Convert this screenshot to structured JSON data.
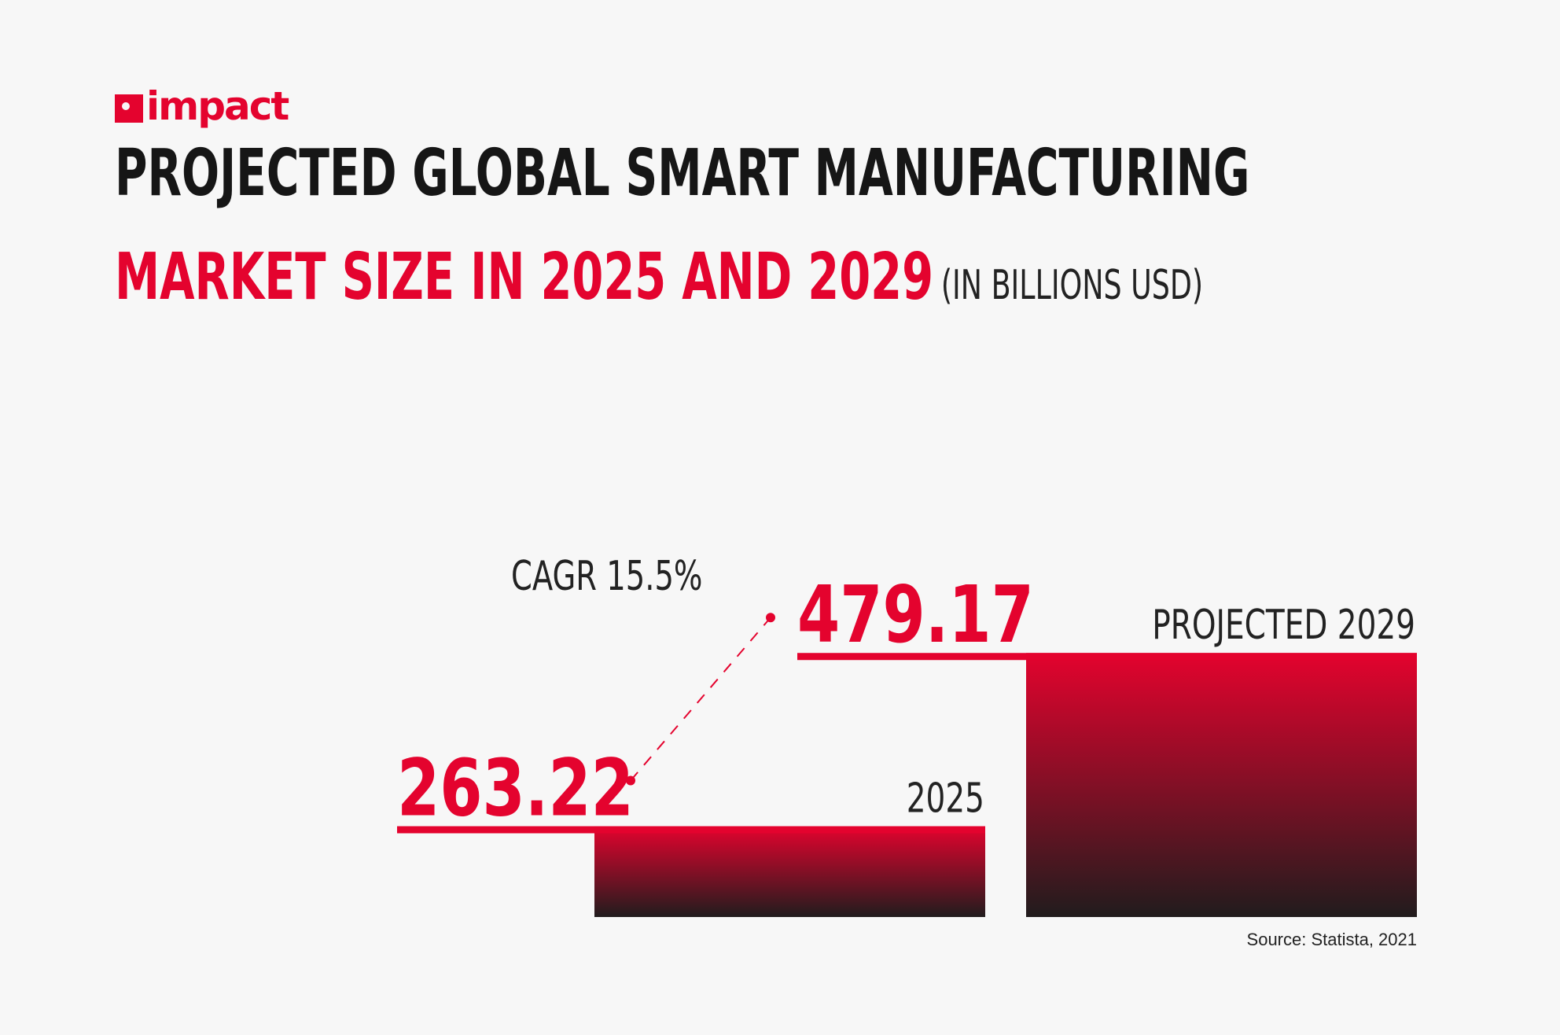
{
  "brand": {
    "logo_text": "impact",
    "accent": "#e4032e",
    "dark": "#1a1a1a"
  },
  "title": "PROJECTED GLOBAL SMART MANUFACTURING",
  "subtitle": "MARKET SIZE IN 2025 AND 2029",
  "unit_note": "(IN BILLIONS USD)",
  "source": "Source: Statista, 2021",
  "chart_data": {
    "type": "bar",
    "categories": [
      "2025",
      "PROJECTED 2029"
    ],
    "values": [
      263.22,
      479.17
    ],
    "value_labels": [
      "263.22",
      "479.17"
    ],
    "annotation": "CAGR 15.5%",
    "ylim": [
      150,
      480
    ],
    "grid": false,
    "legend": "none"
  }
}
